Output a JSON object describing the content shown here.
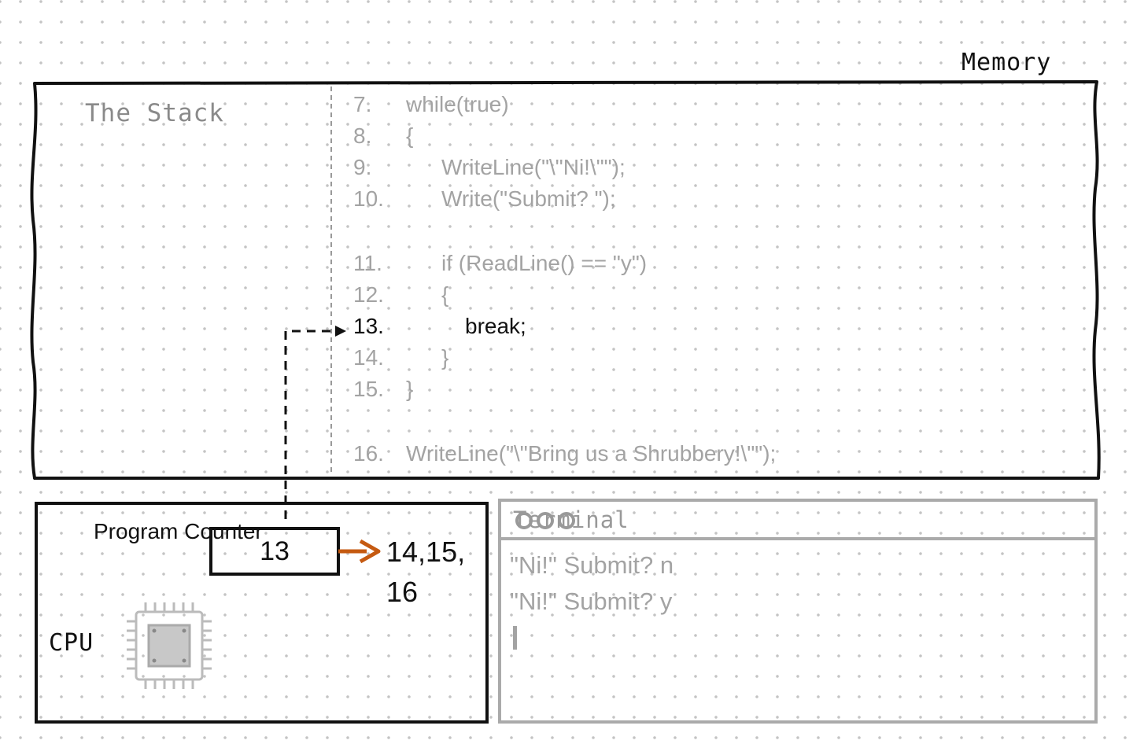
{
  "memory": {
    "title": "Memory",
    "stack_title": "The Stack",
    "code_lines": [
      {
        "num": "7.",
        "text": "while(true)",
        "indent": 0,
        "current": false
      },
      {
        "num": "8.",
        "text": "{",
        "indent": 0,
        "current": false
      },
      {
        "num": "9.",
        "text": "WriteLine(\"\\\"Ni!\\\"\");",
        "indent": 1,
        "current": false
      },
      {
        "num": "10.",
        "text": "Write(\"Submit? \");",
        "indent": 1,
        "current": false
      },
      {
        "num": "11.",
        "text": "if (ReadLine() == \"y\")",
        "indent": 1,
        "current": false
      },
      {
        "num": "12.",
        "text": "{",
        "indent": 1,
        "current": false
      },
      {
        "num": "13.",
        "text": "break;",
        "indent": 2,
        "current": true
      },
      {
        "num": "14.",
        "text": "}",
        "indent": 1,
        "current": false
      },
      {
        "num": "15.",
        "text": "}",
        "indent": 0,
        "current": false
      },
      {
        "num": "16.",
        "text": "WriteLine(\"\\\"Bring us a Shrubbery!\\\"\");",
        "indent": 0,
        "current": false
      }
    ]
  },
  "cpu": {
    "label": "CPU",
    "pc_label": "Program Counter",
    "pc_value": "13",
    "next_values": "14,15, 16"
  },
  "terminal": {
    "title": "Terminal",
    "lines": [
      "\"Ni!\" Submit? n",
      "\"Ni!\" Submit? y"
    ]
  },
  "colors": {
    "arrow": "#c55a11",
    "ink": "#111111",
    "muted": "#a3a3a3",
    "chip_core": "#c8c8c8"
  },
  "icons": {
    "terminal_buttons": "three-circles-icon",
    "cpu": "cpu-chip-icon"
  }
}
